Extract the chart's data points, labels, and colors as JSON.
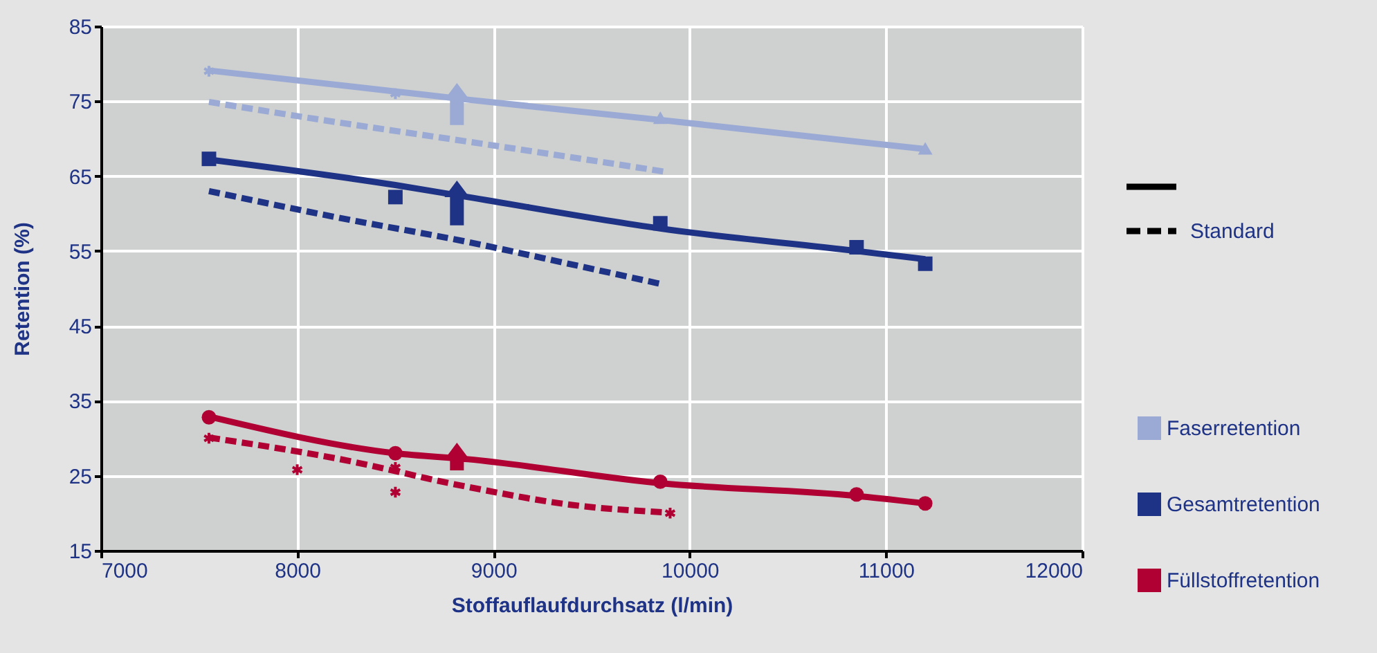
{
  "chart_data": {
    "type": "line",
    "xlabel": "Stoffauflaufdurchsatz (l/min)",
    "ylabel": "Retention (%)",
    "xlim": [
      7000,
      12000
    ],
    "xticks": [
      7000,
      8000,
      9000,
      10000,
      11000,
      12000
    ],
    "ylim": [
      15,
      85
    ],
    "yticks": [
      15,
      25,
      35,
      45,
      55,
      65,
      75,
      85
    ],
    "grid": true,
    "legend": "right",
    "annotations": [
      "Standard"
    ],
    "series": [
      {
        "name": "Faserretention",
        "color": "#9aaad4",
        "line_style": "solid",
        "x": [
          7550,
          8500,
          8870,
          9850,
          10850,
          11200
        ],
        "values": [
          79.1,
          76.3,
          75.2,
          72.5,
          69.6,
          68.6
        ]
      },
      {
        "color": "#9aaad4",
        "line_style": "dashed",
        "x": [
          7550,
          8200,
          8870,
          9400,
          9870
        ],
        "values": [
          74.9,
          72.2,
          69.6,
          67.5,
          65.6
        ]
      },
      {
        "name": "Gesamtretention",
        "color": "#1f3386",
        "line_style": "solid",
        "x": [
          7550,
          8500,
          8870,
          9850,
          10850,
          11200
        ],
        "values": [
          67.2,
          63.8,
          62.2,
          58.0,
          55.0,
          53.9
        ]
      },
      {
        "color": "#1f3386",
        "line_style": "dashed",
        "x": [
          7550,
          8200,
          8870,
          9400,
          9870
        ],
        "values": [
          63.0,
          59.5,
          56.2,
          53.2,
          50.5
        ]
      },
      {
        "name": "Füllstoffretention",
        "color": "#b00033",
        "line_style": "solid",
        "x": [
          7550,
          8500,
          8870,
          9850,
          10850,
          11200
        ],
        "values": [
          32.9,
          28.0,
          27.2,
          24.0,
          22.3,
          21.3
        ]
      },
      {
        "color": "#b00033",
        "line_style": "dashed",
        "x": [
          7550,
          8200,
          8870,
          9400,
          9870
        ],
        "values": [
          30.1,
          27.3,
          23.5,
          21.1,
          20.1
        ]
      },
      {
        "type": "scatter",
        "color": "#9aaad4",
        "marker": "cross",
        "x": [
          7550,
          8500
        ],
        "values": [
          79.0,
          76.0
        ]
      },
      {
        "type": "scatter",
        "color": "#9aaad4",
        "marker": "triangle",
        "x": [
          9850,
          11200
        ],
        "values": [
          72.8,
          68.7
        ]
      },
      {
        "type": "scatter",
        "color": "#1f3386",
        "marker": "square",
        "x": [
          7550,
          8500,
          9850,
          10850,
          11200
        ],
        "values": [
          67.3,
          62.2,
          58.7,
          55.5,
          53.3
        ]
      },
      {
        "type": "scatter",
        "color": "#b00033",
        "marker": "circle",
        "x": [
          7550,
          8500,
          9850,
          10850,
          11200
        ],
        "values": [
          32.8,
          28.0,
          24.2,
          22.5,
          21.3
        ]
      },
      {
        "type": "scatter",
        "color": "#b00033",
        "marker": "cross",
        "x": [
          7550,
          8000,
          8500,
          8500,
          9900
        ],
        "values": [
          30.0,
          25.8,
          26.1,
          22.8,
          20.0
        ]
      }
    ]
  }
}
